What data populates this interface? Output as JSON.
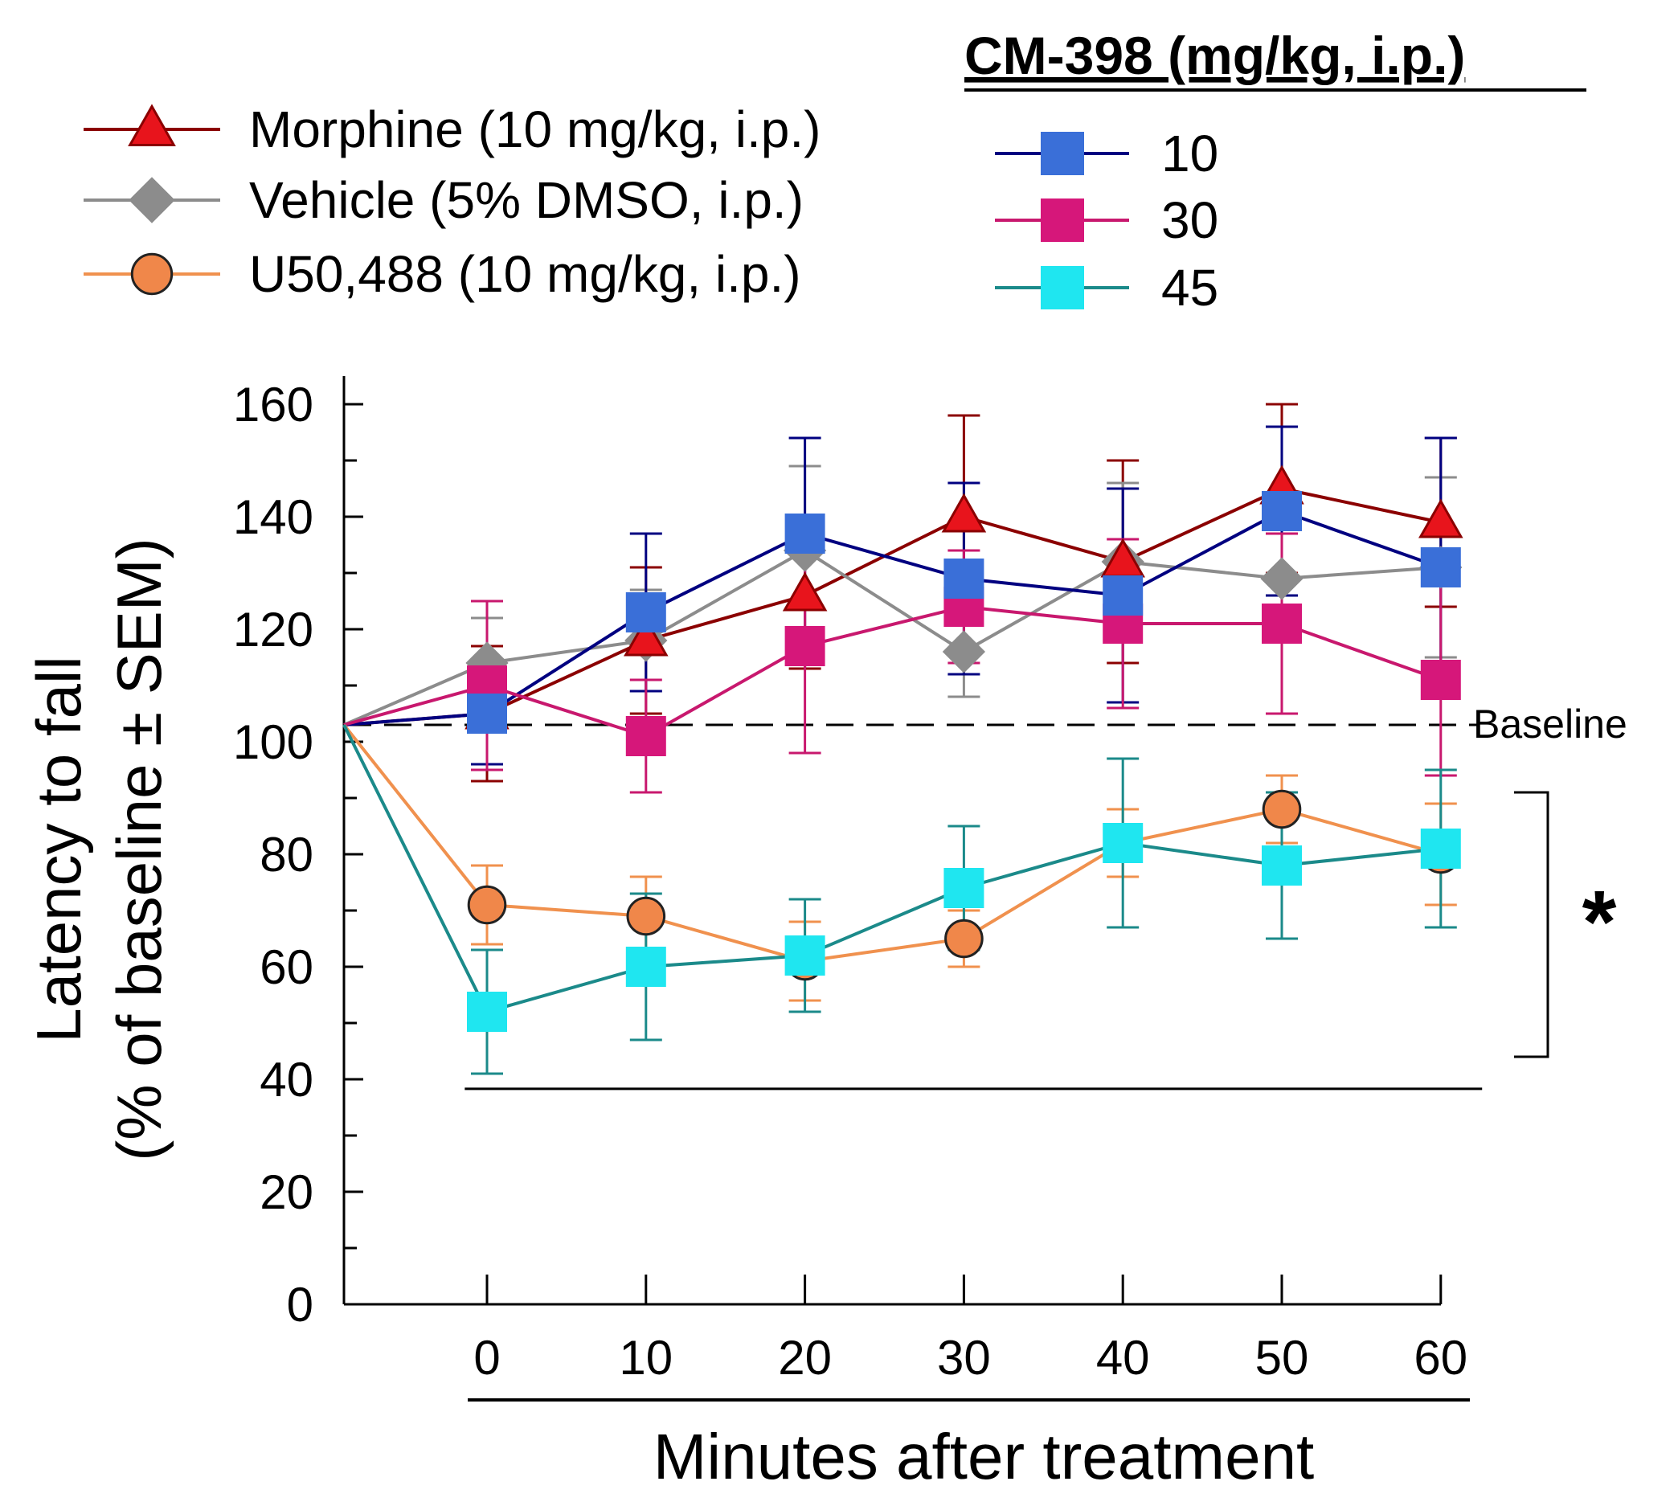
{
  "chart_data": {
    "type": "line",
    "xlabel": "Minutes after treatment",
    "ylabel": [
      "Latency to fall",
      "(% of baseline ± SEM)"
    ],
    "x": [
      0,
      10,
      20,
      30,
      40,
      50,
      60
    ],
    "x_ticks": [
      "0",
      "10",
      "20",
      "30",
      "40",
      "50",
      "60"
    ],
    "y_ticks": [
      "0",
      "20",
      "40",
      "60",
      "80",
      "100",
      "120",
      "140",
      "160"
    ],
    "ylim": [
      0,
      165
    ],
    "baseline": {
      "value": 103,
      "label": "Baseline"
    },
    "start_point": {
      "x": -9,
      "y": 103
    },
    "significance": {
      "label": "*",
      "range": [
        44,
        91
      ]
    },
    "legend_left": [
      "Morphine (10 mg/kg, i.p.)",
      "Vehicle (5% DMSO, i.p.)",
      "U50,488 (10 mg/kg, i.p.)"
    ],
    "legend_right_title": "CM-398 (mg/kg, i.p.)",
    "legend_right": [
      "10",
      "30",
      "45"
    ],
    "series": [
      {
        "name": "Morphine (10 mg/kg, i.p.)",
        "color": "#8b0000",
        "fill": "#e8141c",
        "marker": "triangle",
        "values": [
          105,
          118,
          126,
          140,
          132,
          145,
          139
        ],
        "sem": [
          12,
          13,
          13,
          18,
          18,
          15,
          15
        ]
      },
      {
        "name": "Vehicle (5% DMSO, i.p.)",
        "color": "#8c8c8c",
        "fill": "#8c8c8c",
        "marker": "diamond",
        "values": [
          114,
          118,
          134,
          116,
          132,
          129,
          131
        ],
        "sem": [
          8,
          9,
          15,
          8,
          14,
          10,
          16
        ]
      },
      {
        "name": "CM-398 10",
        "color": "#000080",
        "fill": "#3a6fd8",
        "marker": "square",
        "values": [
          105,
          123,
          137,
          129,
          126,
          141,
          131
        ],
        "sem": [
          9,
          14,
          17,
          17,
          19,
          15,
          23
        ]
      },
      {
        "name": "CM-398 30",
        "color": "#c8186e",
        "fill": "#d6177a",
        "marker": "square",
        "values": [
          110,
          101,
          117,
          124,
          121,
          121,
          111
        ],
        "sem": [
          15,
          10,
          19,
          10,
          15,
          16,
          17
        ]
      },
      {
        "name": "U50,488 (10 mg/kg, i.p.)",
        "color": "#f0914e",
        "fill": "#f0874a",
        "marker": "circle",
        "values": [
          71,
          69,
          61,
          65,
          82,
          88,
          80
        ],
        "sem": [
          7,
          7,
          7,
          5,
          6,
          6,
          9
        ]
      },
      {
        "name": "CM-398 45",
        "color": "#1b8a8a",
        "fill": "#1fe6f0",
        "marker": "square",
        "values": [
          52,
          60,
          62,
          74,
          82,
          78,
          81
        ],
        "sem": [
          11,
          13,
          10,
          11,
          15,
          13,
          14
        ]
      }
    ]
  }
}
